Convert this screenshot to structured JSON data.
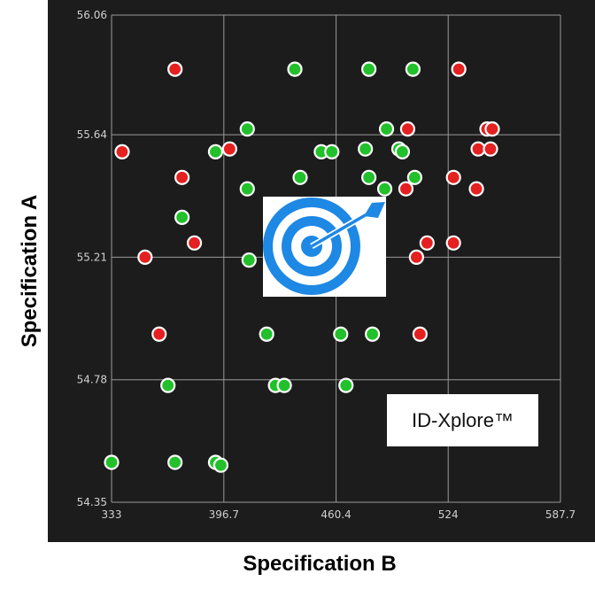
{
  "chart_data": {
    "type": "scatter",
    "xlabel": "Specification B",
    "ylabel": "Specification A",
    "xlim": [
      333,
      587.7
    ],
    "ylim": [
      54.35,
      56.06
    ],
    "x_ticks": [
      "333",
      "396.7",
      "460.4",
      "524",
      "587.7"
    ],
    "y_ticks": [
      "56.06",
      "55.64",
      "55.21",
      "54.78",
      "54.35"
    ],
    "grid": true,
    "colors": {
      "pass": "#22c02a",
      "fail": "#e42020",
      "background": "#1c1c1c",
      "grid": "#9a9a9a"
    },
    "series": [
      {
        "status": "pass",
        "points": [
          [
            437,
            55.87
          ],
          [
            479,
            55.87
          ],
          [
            504,
            55.87
          ],
          [
            410,
            55.66
          ],
          [
            489,
            55.66
          ],
          [
            392,
            55.58
          ],
          [
            452,
            55.58
          ],
          [
            458,
            55.58
          ],
          [
            477,
            55.59
          ],
          [
            496,
            55.59
          ],
          [
            498,
            55.58
          ],
          [
            410,
            55.45
          ],
          [
            440,
            55.49
          ],
          [
            479,
            55.49
          ],
          [
            488,
            55.45
          ],
          [
            505,
            55.49
          ],
          [
            373,
            55.35
          ],
          [
            411,
            55.2
          ],
          [
            421,
            54.94
          ],
          [
            463,
            54.94
          ],
          [
            481,
            54.94
          ],
          [
            365,
            54.76
          ],
          [
            426,
            54.76
          ],
          [
            431,
            54.76
          ],
          [
            466,
            54.76
          ],
          [
            333,
            54.49
          ],
          [
            369,
            54.49
          ],
          [
            392,
            54.49
          ],
          [
            395,
            54.48
          ]
        ]
      },
      {
        "status": "fail",
        "points": [
          [
            369,
            55.87
          ],
          [
            530,
            55.87
          ],
          [
            339,
            55.58
          ],
          [
            400,
            55.59
          ],
          [
            541,
            55.59
          ],
          [
            548,
            55.59
          ],
          [
            501,
            55.66
          ],
          [
            546,
            55.66
          ],
          [
            549,
            55.66
          ],
          [
            373,
            55.49
          ],
          [
            500,
            55.45
          ],
          [
            527,
            55.49
          ],
          [
            540,
            55.45
          ],
          [
            380,
            55.26
          ],
          [
            512,
            55.26
          ],
          [
            527,
            55.26
          ],
          [
            352,
            55.21
          ],
          [
            506,
            55.21
          ],
          [
            360,
            54.94
          ],
          [
            508,
            54.94
          ]
        ]
      }
    ]
  },
  "logo": {
    "name": "target-icon"
  },
  "watermark": {
    "text": "ID-Xplore™"
  }
}
